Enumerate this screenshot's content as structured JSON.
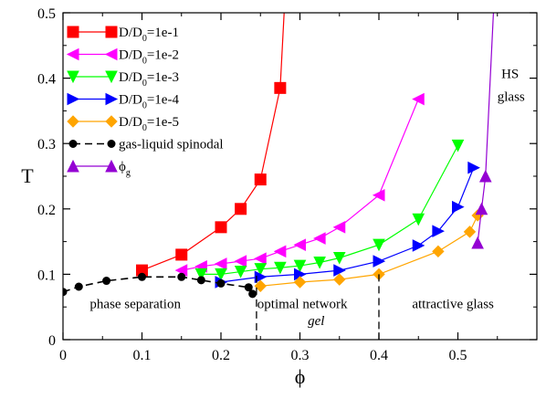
{
  "chart_data": {
    "type": "line",
    "title": "",
    "xlabel": "ϕ",
    "ylabel": "T",
    "xlim": [
      0,
      0.6
    ],
    "ylim": [
      0,
      0.5
    ],
    "x_ticks": [
      {
        "value": 0,
        "label": "0"
      },
      {
        "value": 0.1,
        "label": "0.1"
      },
      {
        "value": 0.2,
        "label": "0.2"
      },
      {
        "value": 0.3,
        "label": "0.3"
      },
      {
        "value": 0.4,
        "label": "0.4"
      },
      {
        "value": 0.5,
        "label": "0.5"
      }
    ],
    "y_ticks": [
      {
        "value": 0,
        "label": "0"
      },
      {
        "value": 0.1,
        "label": "0.1"
      },
      {
        "value": 0.2,
        "label": "0.2"
      },
      {
        "value": 0.3,
        "label": "0.3"
      },
      {
        "value": 0.4,
        "label": "0.4"
      },
      {
        "value": 0.5,
        "label": "0.5"
      }
    ],
    "grid": false,
    "legend_position": "top-left",
    "series": [
      {
        "name_main": "D/D",
        "name_sub": "0",
        "name_rest": "=1e-1",
        "color": "#ff0000",
        "marker": "square",
        "dashed": false,
        "points": [
          [
            0.1,
            0.106
          ],
          [
            0.15,
            0.13
          ],
          [
            0.2,
            0.172
          ],
          [
            0.225,
            0.2
          ],
          [
            0.25,
            0.245
          ],
          [
            0.275,
            0.385
          ],
          [
            0.28,
            0.5
          ]
        ]
      },
      {
        "name_main": "D/D",
        "name_sub": "0",
        "name_rest": "=1e-2",
        "color": "#ff00ff",
        "marker": "triangle-left",
        "dashed": false,
        "points": [
          [
            0.15,
            0.106
          ],
          [
            0.175,
            0.112
          ],
          [
            0.2,
            0.116
          ],
          [
            0.225,
            0.12
          ],
          [
            0.25,
            0.124
          ],
          [
            0.275,
            0.135
          ],
          [
            0.3,
            0.145
          ],
          [
            0.325,
            0.155
          ],
          [
            0.35,
            0.172
          ],
          [
            0.4,
            0.221
          ],
          [
            0.45,
            0.368
          ]
        ]
      },
      {
        "name_main": "D/D",
        "name_sub": "0",
        "name_rest": "=1e-3",
        "color": "#00ff00",
        "marker": "triangle-down",
        "dashed": false,
        "points": [
          [
            0.175,
            0.1
          ],
          [
            0.2,
            0.1
          ],
          [
            0.225,
            0.104
          ],
          [
            0.25,
            0.108
          ],
          [
            0.275,
            0.11
          ],
          [
            0.3,
            0.113
          ],
          [
            0.325,
            0.118
          ],
          [
            0.35,
            0.125
          ],
          [
            0.4,
            0.145
          ],
          [
            0.45,
            0.184
          ],
          [
            0.5,
            0.297
          ]
        ]
      },
      {
        "name_main": "D/D",
        "name_sub": "0",
        "name_rest": "=1e-4",
        "color": "#0000ff",
        "marker": "triangle-right",
        "dashed": false,
        "points": [
          [
            0.2,
            0.088
          ],
          [
            0.25,
            0.096
          ],
          [
            0.3,
            0.1
          ],
          [
            0.35,
            0.106
          ],
          [
            0.4,
            0.12
          ],
          [
            0.45,
            0.144
          ],
          [
            0.475,
            0.166
          ],
          [
            0.5,
            0.203
          ],
          [
            0.52,
            0.263
          ]
        ]
      },
      {
        "name_main": "D/D",
        "name_sub": "0",
        "name_rest": "=1e-5",
        "color": "#ffa500",
        "marker": "diamond",
        "dashed": false,
        "points": [
          [
            0.25,
            0.082
          ],
          [
            0.3,
            0.088
          ],
          [
            0.35,
            0.092
          ],
          [
            0.4,
            0.1
          ],
          [
            0.475,
            0.135
          ],
          [
            0.515,
            0.165
          ],
          [
            0.525,
            0.19
          ]
        ]
      },
      {
        "name_main": "gas-liquid spinodal",
        "name_sub": "",
        "name_rest": "",
        "color": "#000000",
        "marker": "circle",
        "dashed": true,
        "points": [
          [
            0,
            0.073
          ],
          [
            0.02,
            0.081
          ],
          [
            0.055,
            0.09
          ],
          [
            0.1,
            0.096
          ],
          [
            0.15,
            0.096
          ],
          [
            0.175,
            0.091
          ],
          [
            0.2,
            0.086
          ],
          [
            0.235,
            0.08
          ],
          [
            0.24,
            0.07
          ]
        ]
      },
      {
        "name_main": "ϕ",
        "name_sub": "g",
        "name_rest": "",
        "color": "#9400d3",
        "marker": "triangle-up",
        "dashed": false,
        "points": [
          [
            0.525,
            0.148
          ],
          [
            0.53,
            0.2
          ],
          [
            0.535,
            0.25
          ],
          [
            0.545,
            0.5
          ]
        ]
      }
    ],
    "vlines": [
      {
        "x": 0.245,
        "y_top": 0.098
      },
      {
        "x": 0.4,
        "y_top": 0.1
      }
    ],
    "annotations": [
      {
        "id": "phase",
        "text": "phase separation",
        "x": 0.034,
        "y": 0.048,
        "italic": false
      },
      {
        "id": "optimal",
        "text": "optimal network",
        "x": 0.246,
        "y": 0.048,
        "italic": false
      },
      {
        "id": "gel",
        "text": "gel",
        "x": 0.31,
        "y": 0.022,
        "italic": true
      },
      {
        "id": "attractive",
        "text": "attractive glass",
        "x": 0.442,
        "y": 0.048,
        "italic": false
      },
      {
        "id": "hs",
        "text": "HS",
        "x": 0.555,
        "y": 0.4,
        "italic": false
      },
      {
        "id": "glass",
        "text": "glass",
        "x": 0.55,
        "y": 0.365,
        "italic": false
      }
    ]
  }
}
